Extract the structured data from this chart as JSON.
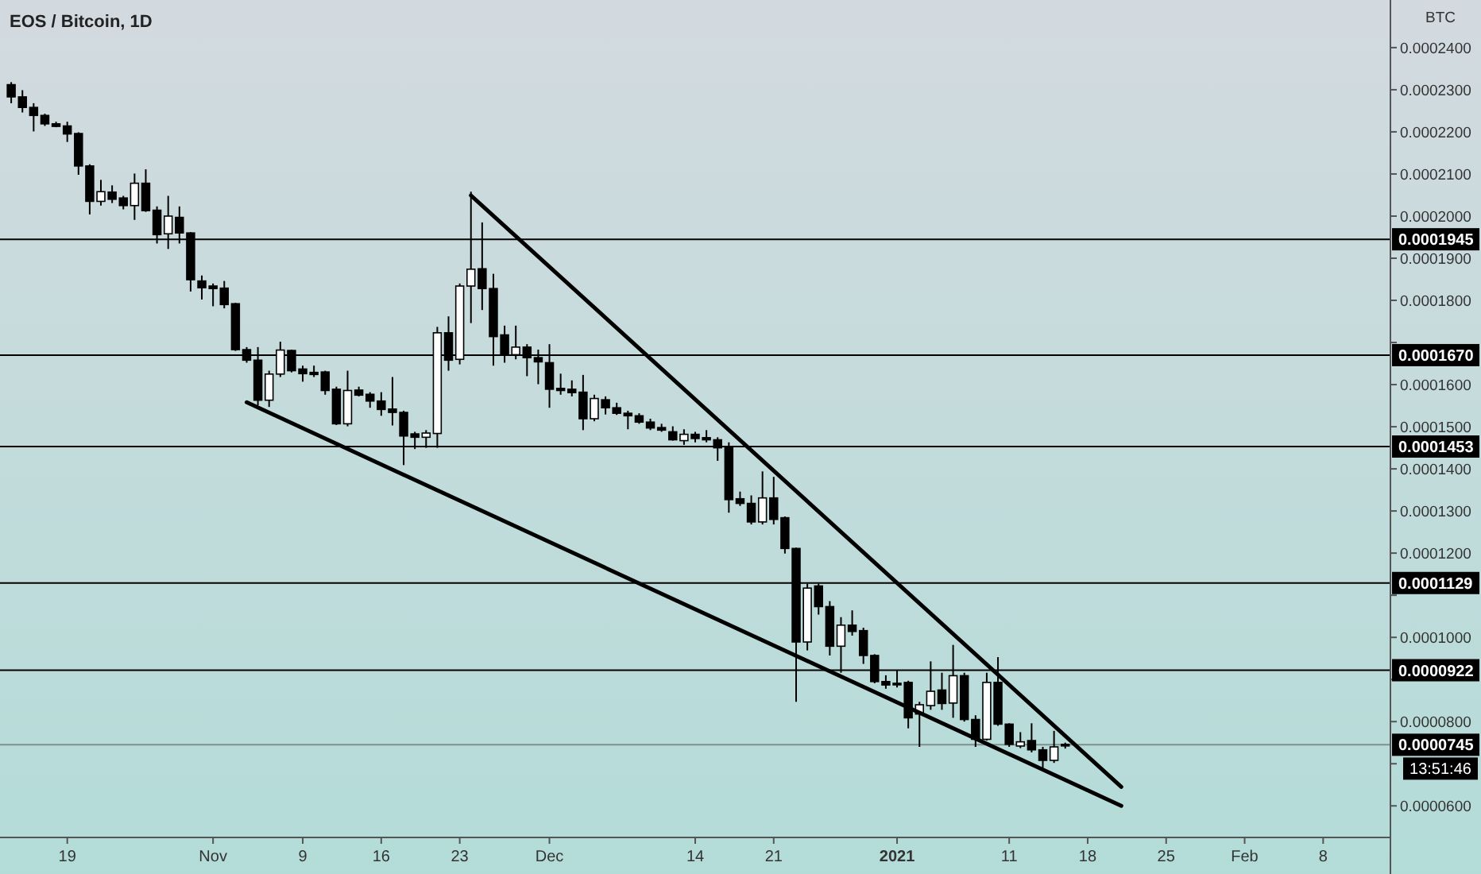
{
  "chart_data": {
    "type": "candlestick",
    "title": "EOS / Bitcoin, 1D",
    "ylabel": "BTC",
    "x": [
      "2020-10-14",
      "2020-10-15",
      "2020-10-16",
      "2020-10-17",
      "2020-10-18",
      "2020-10-19",
      "2020-10-20",
      "2020-10-21",
      "2020-10-22",
      "2020-10-23",
      "2020-10-24",
      "2020-10-25",
      "2020-10-26",
      "2020-10-27",
      "2020-10-28",
      "2020-10-29",
      "2020-10-30",
      "2020-10-31",
      "2020-11-01",
      "2020-11-02",
      "2020-11-03",
      "2020-11-04",
      "2020-11-05",
      "2020-11-06",
      "2020-11-07",
      "2020-11-08",
      "2020-11-09",
      "2020-11-10",
      "2020-11-11",
      "2020-11-12",
      "2020-11-13",
      "2020-11-14",
      "2020-11-15",
      "2020-11-16",
      "2020-11-17",
      "2020-11-18",
      "2020-11-19",
      "2020-11-20",
      "2020-11-21",
      "2020-11-22",
      "2020-11-23",
      "2020-11-24",
      "2020-11-25",
      "2020-11-26",
      "2020-11-27",
      "2020-11-28",
      "2020-11-29",
      "2020-11-30",
      "2020-12-01",
      "2020-12-02",
      "2020-12-03",
      "2020-12-04",
      "2020-12-05",
      "2020-12-06",
      "2020-12-07",
      "2020-12-08",
      "2020-12-09",
      "2020-12-10",
      "2020-12-11",
      "2020-12-12",
      "2020-12-13",
      "2020-12-14",
      "2020-12-15",
      "2020-12-16",
      "2020-12-17",
      "2020-12-18",
      "2020-12-19",
      "2020-12-20",
      "2020-12-21",
      "2020-12-22",
      "2020-12-23",
      "2020-12-24",
      "2020-12-25",
      "2020-12-26",
      "2020-12-27",
      "2020-12-28",
      "2020-12-29",
      "2020-12-30",
      "2020-12-31",
      "2021-01-01",
      "2021-01-02",
      "2021-01-03",
      "2021-01-04",
      "2021-01-05",
      "2021-01-06",
      "2021-01-07",
      "2021-01-08",
      "2021-01-09",
      "2021-01-10",
      "2021-01-11",
      "2021-01-12",
      "2021-01-13",
      "2021-01-14",
      "2021-01-15",
      "2021-01-16"
    ],
    "ohlc": [
      [
        0.0002312,
        0.0002318,
        0.0002268,
        0.0002283
      ],
      [
        0.0002283,
        0.0002299,
        0.0002246,
        0.0002258
      ],
      [
        0.0002258,
        0.0002268,
        0.0002201,
        0.0002239
      ],
      [
        0.0002239,
        0.0002243,
        0.0002214,
        0.0002219
      ],
      [
        0.0002219,
        0.0002224,
        0.0002211,
        0.0002213
      ],
      [
        0.0002214,
        0.0002224,
        0.0002176,
        0.0002195
      ],
      [
        0.0002196,
        0.0002199,
        0.0002098,
        0.0002119
      ],
      [
        0.0002119,
        0.0002123,
        0.0002004,
        0.0002035
      ],
      [
        0.0002035,
        0.0002086,
        0.0002025,
        0.0002058
      ],
      [
        0.0002057,
        0.0002073,
        0.0002031,
        0.000204
      ],
      [
        0.0002043,
        0.0002048,
        0.0002016,
        0.0002025
      ],
      [
        0.0002025,
        0.0002101,
        0.0001991,
        0.0002078
      ],
      [
        0.0002078,
        0.0002111,
        0.000201,
        0.0002013
      ],
      [
        0.0002014,
        0.0002023,
        0.0001935,
        0.0001956
      ],
      [
        0.0001958,
        0.0002048,
        0.0001922,
        0.0002
      ],
      [
        0.0001997,
        0.0002023,
        0.0001935,
        0.000196
      ],
      [
        0.000196,
        0.0001962,
        0.0001821,
        0.0001849
      ],
      [
        0.0001846,
        0.0001859,
        0.0001802,
        0.000183
      ],
      [
        0.0001834,
        0.000184,
        0.0001786,
        0.0001828
      ],
      [
        0.0001829,
        0.0001846,
        0.0001781,
        0.000179
      ],
      [
        0.0001792,
        0.0001794,
        0.000168,
        0.0001683
      ],
      [
        0.0001683,
        0.0001689,
        0.0001652,
        0.0001658
      ],
      [
        0.0001658,
        0.0001689,
        0.0001551,
        0.0001563
      ],
      [
        0.0001563,
        0.0001633,
        0.0001547,
        0.0001625
      ],
      [
        0.0001625,
        0.0001702,
        0.0001618,
        0.0001682
      ],
      [
        0.0001681,
        0.0001683,
        0.0001629,
        0.0001633
      ],
      [
        0.0001637,
        0.0001645,
        0.0001607,
        0.0001626
      ],
      [
        0.0001629,
        0.0001645,
        0.0001618,
        0.0001624
      ],
      [
        0.000163,
        0.0001633,
        0.0001576,
        0.0001586
      ],
      [
        0.0001589,
        0.0001595,
        0.0001504,
        0.0001507
      ],
      [
        0.0001507,
        0.0001633,
        0.0001501,
        0.0001586
      ],
      [
        0.0001587,
        0.0001595,
        0.0001572,
        0.0001575
      ],
      [
        0.0001577,
        0.0001582,
        0.0001545,
        0.0001561
      ],
      [
        0.0001561,
        0.0001582,
        0.0001526,
        0.0001541
      ],
      [
        0.0001542,
        0.0001618,
        0.0001503,
        0.0001534
      ],
      [
        0.0001534,
        0.0001538,
        0.0001409,
        0.0001478
      ],
      [
        0.0001483,
        0.0001488,
        0.0001447,
        0.0001475
      ],
      [
        0.0001475,
        0.0001492,
        0.000145,
        0.0001485
      ],
      [
        0.0001484,
        0.0001737,
        0.000145,
        0.0001723
      ],
      [
        0.0001723,
        0.0001762,
        0.0001633,
        0.0001658
      ],
      [
        0.000166,
        0.000184,
        0.0001648,
        0.0001834
      ],
      [
        0.0001834,
        0.0002058,
        0.0001746,
        0.0001874
      ],
      [
        0.0001875,
        0.0001985,
        0.0001777,
        0.0001828
      ],
      [
        0.0001828,
        0.0001863,
        0.0001645,
        0.0001714
      ],
      [
        0.0001718,
        0.000174,
        0.0001652,
        0.0001673
      ],
      [
        0.0001671,
        0.000174,
        0.000166,
        0.0001689
      ],
      [
        0.0001689,
        0.0001696,
        0.000162,
        0.0001664
      ],
      [
        0.0001664,
        0.0001683,
        0.0001601,
        0.0001654
      ],
      [
        0.0001652,
        0.0001696,
        0.0001545,
        0.0001589
      ],
      [
        0.0001591,
        0.0001626,
        0.0001576,
        0.0001586
      ],
      [
        0.0001589,
        0.000161,
        0.0001572,
        0.0001581
      ],
      [
        0.0001582,
        0.0001623,
        0.0001492,
        0.0001519
      ],
      [
        0.0001519,
        0.0001576,
        0.0001513,
        0.0001567
      ],
      [
        0.0001564,
        0.0001572,
        0.0001529,
        0.0001545
      ],
      [
        0.0001545,
        0.0001557,
        0.0001528,
        0.0001532
      ],
      [
        0.0001532,
        0.0001538,
        0.0001494,
        0.0001526
      ],
      [
        0.0001526,
        0.0001532,
        0.0001507,
        0.0001511
      ],
      [
        0.0001511,
        0.0001519,
        0.0001492,
        0.0001497
      ],
      [
        0.0001498,
        0.0001507,
        0.0001488,
        0.0001492
      ],
      [
        0.0001488,
        0.0001501,
        0.0001467,
        0.0001469
      ],
      [
        0.0001467,
        0.0001494,
        0.0001457,
        0.0001482
      ],
      [
        0.0001482,
        0.0001488,
        0.0001463,
        0.0001472
      ],
      [
        0.0001474,
        0.0001492,
        0.0001463,
        0.0001469
      ],
      [
        0.0001469,
        0.0001475,
        0.0001419,
        0.000145
      ],
      [
        0.000145,
        0.0001463,
        0.0001296,
        0.0001327
      ],
      [
        0.0001329,
        0.0001346,
        0.0001312,
        0.0001318
      ],
      [
        0.0001318,
        0.0001337,
        0.0001268,
        0.0001274
      ],
      [
        0.0001274,
        0.0001394,
        0.0001268,
        0.0001331
      ],
      [
        0.0001331,
        0.0001381,
        0.0001268,
        0.000128
      ],
      [
        0.0001284,
        0.0001287,
        0.0001199,
        0.0001211
      ],
      [
        0.0001211,
        0.0001213,
        8.47e-05,
        9.89e-05
      ],
      [
        9.89e-05,
        0.0001127,
        9.69e-05,
        0.0001117
      ],
      [
        0.0001122,
        0.0001127,
        0.0001054,
        0.0001073
      ],
      [
        0.0001073,
        0.0001086,
        9.57e-05,
        9.79e-05
      ],
      [
        9.79e-05,
        0.0001048,
        9.16e-05,
        0.0001029
      ],
      [
        0.0001029,
        0.0001064,
        0.0001004,
        0.0001014
      ],
      [
        0.0001016,
        0.0001023,
        9.37e-05,
        9.57e-05
      ],
      [
        9.57e-05,
        9.6e-05,
        8.91e-05,
        8.95e-05
      ],
      [
        8.95e-05,
        9.1e-05,
        8.78e-05,
        8.87e-05
      ],
      [
        8.91e-05,
        9.22e-05,
        8.81e-05,
        8.88e-05
      ],
      [
        8.93e-05,
        8.97e-05,
        7.84e-05,
        8.09e-05
      ],
      [
        8.18e-05,
        8.47e-05,
        7.4e-05,
        8.4e-05
      ],
      [
        8.38e-05,
        9.43e-05,
        8.28e-05,
        8.72e-05
      ],
      [
        8.75e-05,
        9.16e-05,
        8.28e-05,
        8.43e-05
      ],
      [
        8.44e-05,
        9.82e-05,
        8.09e-05,
        9.09e-05
      ],
      [
        9.09e-05,
        9.16e-05,
        8e-05,
        8.05e-05
      ],
      [
        8.05e-05,
        8.15e-05,
        7.4e-05,
        7.58e-05
      ],
      [
        7.58e-05,
        9.16e-05,
        7.55e-05,
        8.93e-05
      ],
      [
        8.93e-05,
        9.53e-05,
        7.9e-05,
        7.94e-05
      ],
      [
        7.94e-05,
        7.96e-05,
        7.4e-05,
        7.46e-05
      ],
      [
        7.42e-05,
        7.75e-05,
        7.37e-05,
        7.52e-05
      ],
      [
        7.55e-05,
        7.96e-05,
        7.27e-05,
        7.33e-05
      ],
      [
        7.33e-05,
        7.4e-05,
        6.89e-05,
        7.08e-05
      ],
      [
        7.08e-05,
        7.78e-05,
        7.02e-05,
        7.4e-05
      ],
      [
        7.46e-05,
        7.5e-05,
        7.36e-05,
        7.45e-05
      ]
    ],
    "series": [
      {
        "type": "line",
        "x": [
          "2020-11-24",
          "2021-01-21"
        ],
        "values": [
          0.0002049,
          6.45e-05
        ],
        "color": "#000000"
      },
      {
        "type": "line",
        "x": [
          "2020-11-04",
          "2021-01-21"
        ],
        "values": [
          0.0001558,
          6e-05
        ],
        "color": "#000000"
      }
    ],
    "ref_lines": [
      {
        "axis": "y",
        "value": 0.0001945,
        "label": "0.0001945",
        "color": "#000000"
      },
      {
        "axis": "y",
        "value": 0.000167,
        "label": "0.0001670",
        "color": "#000000"
      },
      {
        "axis": "y",
        "value": 0.0001453,
        "label": "0.0001453",
        "color": "#000000"
      },
      {
        "axis": "y",
        "value": 0.0001129,
        "label": "0.0001129",
        "color": "#000000"
      },
      {
        "axis": "y",
        "value": 9.22e-05,
        "label": "0.0000922",
        "color": "#000000"
      },
      {
        "axis": "y",
        "value": 7.45e-05,
        "label": "0.0000745",
        "color": "#7f8f8f"
      }
    ],
    "annotations": [
      "13:51:46"
    ],
    "xlim": [
      "2020-10-13",
      "2021-02-14"
    ],
    "xticks": [
      {
        "value": "2020-10-19",
        "label": "19"
      },
      {
        "value": "2020-11-01",
        "label": "Nov"
      },
      {
        "value": "2020-11-09",
        "label": "9"
      },
      {
        "value": "2020-11-16",
        "label": "16"
      },
      {
        "value": "2020-11-23",
        "label": "23"
      },
      {
        "value": "2020-12-01",
        "label": "Dec"
      },
      {
        "value": "2020-12-14",
        "label": "14"
      },
      {
        "value": "2020-12-21",
        "label": "21"
      },
      {
        "value": "2021-01-01",
        "label": "2021"
      },
      {
        "value": "2021-01-11",
        "label": "11"
      },
      {
        "value": "2021-01-18",
        "label": "18"
      },
      {
        "value": "2021-01-25",
        "label": "25"
      },
      {
        "value": "2021-02-01",
        "label": "Feb"
      },
      {
        "value": "2021-02-08",
        "label": "8"
      }
    ],
    "ylim": [
      5.25e-05,
      0.0002513
    ],
    "yticks": [
      {
        "value": 6e-05,
        "label": "0.0000600"
      },
      {
        "value": 7e-05,
        "label": null
      },
      {
        "value": 8e-05,
        "label": "0.0000800"
      },
      {
        "value": 9e-05,
        "label": null
      },
      {
        "value": 0.0001,
        "label": "0.0001000"
      },
      {
        "value": 0.00011,
        "label": null
      },
      {
        "value": 0.00012,
        "label": "0.0001200"
      },
      {
        "value": 0.00013,
        "label": "0.0001300"
      },
      {
        "value": 0.00014,
        "label": "0.0001400"
      },
      {
        "value": 0.00015,
        "label": "0.0001500"
      },
      {
        "value": 0.00016,
        "label": "0.0001600"
      },
      {
        "value": 0.00017,
        "label": null
      },
      {
        "value": 0.00018,
        "label": "0.0001800"
      },
      {
        "value": 0.00019,
        "label": "0.0001900"
      },
      {
        "value": 0.0002,
        "label": "0.0002000"
      },
      {
        "value": 0.00021,
        "label": "0.0002100"
      },
      {
        "value": 0.00022,
        "label": "0.0002200"
      },
      {
        "value": 0.00023,
        "label": "0.0002300"
      },
      {
        "value": 0.00024,
        "label": "0.0002400"
      }
    ]
  }
}
